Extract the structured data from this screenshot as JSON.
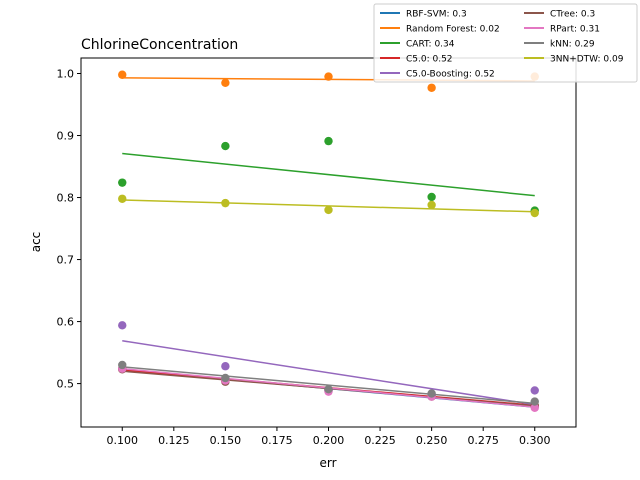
{
  "chart_data": {
    "type": "scatter",
    "title": "ChlorineConcentration",
    "xlabel": "err",
    "ylabel": "acc",
    "xlim": [
      0.08,
      0.32
    ],
    "ylim": [
      0.43,
      1.025
    ],
    "xticks": [
      "0.100",
      "0.125",
      "0.150",
      "0.175",
      "0.200",
      "0.225",
      "0.250",
      "0.275",
      "0.300"
    ],
    "yticks": [
      "0.5",
      "0.6",
      "0.7",
      "0.8",
      "0.9",
      "1.0"
    ],
    "legend_position": "top-right, outside plot",
    "series": [
      {
        "name": "RBF-SVM: 0.3",
        "color": "#1f77b4",
        "x": [
          0.1,
          0.15,
          0.2,
          0.25,
          0.3
        ],
        "y": [
          0.524,
          0.506,
          0.488,
          0.481,
          0.463
        ],
        "fit": [
          0.522,
          0.462
        ]
      },
      {
        "name": "Random Forest: 0.02",
        "color": "#ff7f0e",
        "x": [
          0.1,
          0.15,
          0.2,
          0.25,
          0.3
        ],
        "y": [
          0.998,
          0.985,
          0.995,
          0.977,
          0.995
        ],
        "fit": [
          0.993,
          0.988
        ]
      },
      {
        "name": "CART: 0.34",
        "color": "#2ca02c",
        "x": [
          0.1,
          0.15,
          0.2,
          0.25,
          0.3
        ],
        "y": [
          0.824,
          0.883,
          0.891,
          0.801,
          0.779
        ],
        "fit": [
          0.871,
          0.803
        ]
      },
      {
        "name": "C5.0: 0.52",
        "color": "#d62728",
        "x": [
          0.1,
          0.15,
          0.2,
          0.25,
          0.3
        ],
        "y": [
          0.524,
          0.505,
          0.49,
          0.481,
          0.464
        ],
        "fit": [
          0.522,
          0.465
        ]
      },
      {
        "name": "C5.0-Boosting: 0.52",
        "color": "#9467bd",
        "x": [
          0.1,
          0.15,
          0.2,
          0.25,
          0.3
        ],
        "y": [
          0.594,
          0.528,
          0.49,
          0.482,
          0.489
        ],
        "fit": [
          0.569,
          0.466
        ]
      },
      {
        "name": "CTree: 0.3",
        "color": "#8c564b",
        "x": [
          0.1,
          0.15,
          0.2,
          0.25,
          0.3
        ],
        "y": [
          0.523,
          0.503,
          0.49,
          0.479,
          0.465
        ],
        "fit": [
          0.52,
          0.464
        ]
      },
      {
        "name": "RPart: 0.31",
        "color": "#e377c2",
        "x": [
          0.1,
          0.15,
          0.2,
          0.25,
          0.3
        ],
        "y": [
          0.524,
          0.505,
          0.487,
          0.479,
          0.461
        ],
        "fit": [
          0.524,
          0.462
        ]
      },
      {
        "name": "kNN: 0.29",
        "color": "#7f7f7f",
        "x": [
          0.1,
          0.15,
          0.2,
          0.25,
          0.3
        ],
        "y": [
          0.53,
          0.509,
          0.491,
          0.484,
          0.471
        ],
        "fit": [
          0.527,
          0.468
        ]
      },
      {
        "name": "3NN+DTW: 0.09",
        "color": "#bcbd22",
        "x": [
          0.1,
          0.15,
          0.2,
          0.25,
          0.3
        ],
        "y": [
          0.798,
          0.791,
          0.78,
          0.788,
          0.775
        ],
        "fit": [
          0.796,
          0.777
        ]
      }
    ]
  }
}
